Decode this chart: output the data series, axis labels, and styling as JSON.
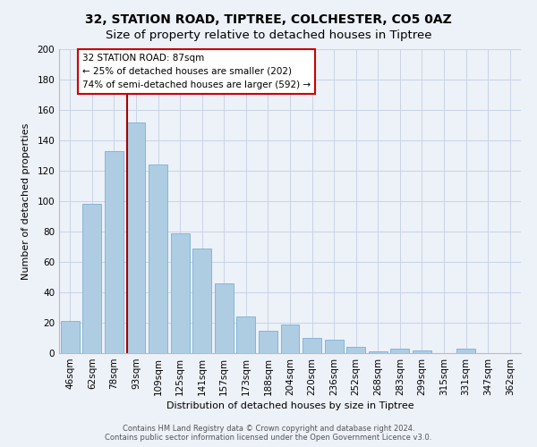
{
  "title": "32, STATION ROAD, TIPTREE, COLCHESTER, CO5 0AZ",
  "subtitle": "Size of property relative to detached houses in Tiptree",
  "xlabel": "Distribution of detached houses by size in Tiptree",
  "ylabel": "Number of detached properties",
  "bar_labels": [
    "46sqm",
    "62sqm",
    "78sqm",
    "93sqm",
    "109sqm",
    "125sqm",
    "141sqm",
    "157sqm",
    "173sqm",
    "188sqm",
    "204sqm",
    "220sqm",
    "236sqm",
    "252sqm",
    "268sqm",
    "283sqm",
    "299sqm",
    "315sqm",
    "331sqm",
    "347sqm",
    "362sqm"
  ],
  "bar_values": [
    21,
    98,
    133,
    152,
    124,
    79,
    69,
    46,
    24,
    15,
    19,
    10,
    9,
    4,
    1,
    3,
    2,
    0,
    3,
    0,
    0
  ],
  "bar_color": "#aecde3",
  "bar_edge_color": "#7bafd4",
  "vline_color": "#aa0000",
  "annotation_text": "32 STATION ROAD: 87sqm\n← 25% of detached houses are smaller (202)\n74% of semi-detached houses are larger (592) →",
  "annotation_box_color": "#ffffff",
  "annotation_box_edge": "#cc0000",
  "ylim": [
    0,
    200
  ],
  "yticks": [
    0,
    20,
    40,
    60,
    80,
    100,
    120,
    140,
    160,
    180,
    200
  ],
  "grid_color": "#c8d4e8",
  "bg_color": "#edf1f8",
  "footer_line1": "Contains HM Land Registry data © Crown copyright and database right 2024.",
  "footer_line2": "Contains public sector information licensed under the Open Government Licence v3.0.",
  "title_fontsize": 10,
  "axis_fontsize": 8,
  "tick_fontsize": 7.5,
  "footer_fontsize": 6
}
